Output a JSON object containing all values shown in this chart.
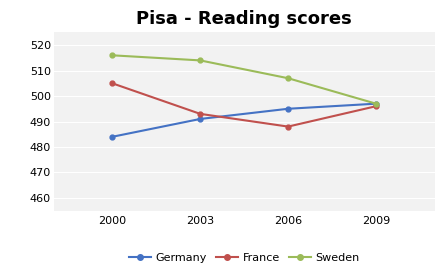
{
  "title": "Pisa - Reading scores",
  "years": [
    2000,
    2003,
    2006,
    2009
  ],
  "series": [
    {
      "name": "Germany",
      "values": [
        484,
        491,
        495,
        497
      ],
      "color": "#4472C4",
      "marker": "o"
    },
    {
      "name": "France",
      "values": [
        505,
        493,
        488,
        496
      ],
      "color": "#C0504D",
      "marker": "o"
    },
    {
      "name": "Sweden",
      "values": [
        516,
        514,
        507,
        497
      ],
      "color": "#9BBB59",
      "marker": "o"
    }
  ],
  "ylim": [
    455,
    525
  ],
  "yticks": [
    460,
    470,
    480,
    490,
    500,
    510,
    520
  ],
  "xticks": [
    2000,
    2003,
    2006,
    2009
  ],
  "background_color": "#FFFFFF",
  "plot_bg_color": "#F2F2F2",
  "grid_color": "#FFFFFF",
  "title_fontsize": 13,
  "legend_fontsize": 8,
  "tick_fontsize": 8
}
